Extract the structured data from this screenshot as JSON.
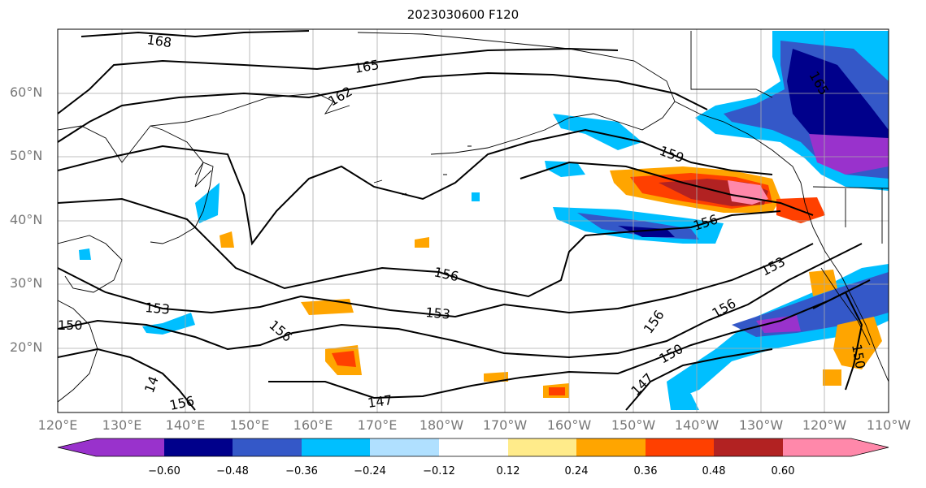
{
  "title": "2023030600 F120",
  "map": {
    "lat_labels": [
      "60°N",
      "50°N",
      "40°N",
      "30°N",
      "20°N"
    ],
    "lon_labels": [
      "120°E",
      "130°E",
      "140°E",
      "150°E",
      "160°E",
      "170°E",
      "180°W",
      "170°W",
      "160°W",
      "150°W",
      "140°W",
      "130°W",
      "120°W",
      "110°W"
    ],
    "contour_labels": [
      "168",
      "165",
      "162",
      "159",
      "156",
      "156",
      "153",
      "153",
      "153",
      "150",
      "150",
      "156",
      "156",
      "156",
      "147",
      "147",
      "14",
      "156",
      "150",
      "165"
    ]
  },
  "colorbar": {
    "tick_labels": [
      "−0.60",
      "−0.48",
      "−0.36",
      "−0.24",
      "−0.12",
      "0.12",
      "0.24",
      "0.36",
      "0.48",
      "0.60"
    ],
    "colors": [
      "#9932CC",
      "#00008B",
      "#3458C8",
      "#00BFFF",
      "#B0E0FF",
      "#FFFFFF",
      "#FFEB8A",
      "#FFA500",
      "#FF4000",
      "#B22222",
      "#FF88AA"
    ]
  }
}
